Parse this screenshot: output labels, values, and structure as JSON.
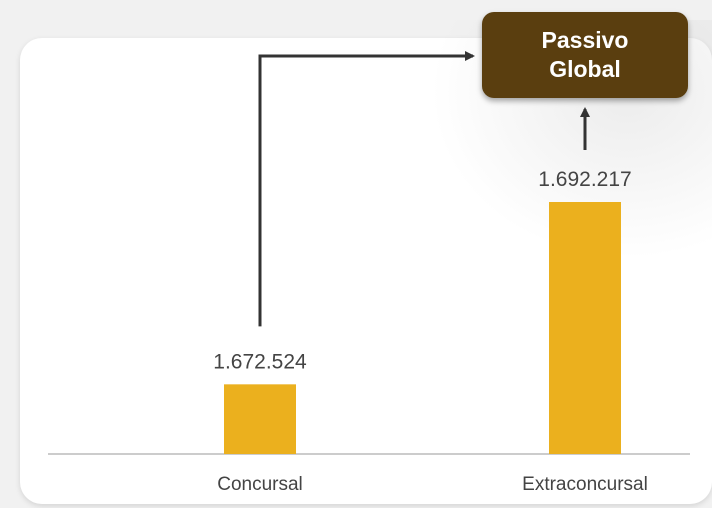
{
  "chart_data": {
    "type": "bar",
    "categories": [
      "Concursal",
      "Extraconcursal"
    ],
    "values": [
      1672524,
      1692217
    ],
    "value_labels": [
      "1.672.524",
      "1.692.217"
    ],
    "title": "",
    "xlabel": "",
    "ylabel": "",
    "annotation": "Passivo Global",
    "colors": {
      "bar": "#EBB01E",
      "annotation_box": "#5A3E0F",
      "arrow": "#333333",
      "baseline": "#cccccc",
      "label_text": "#444444"
    }
  }
}
